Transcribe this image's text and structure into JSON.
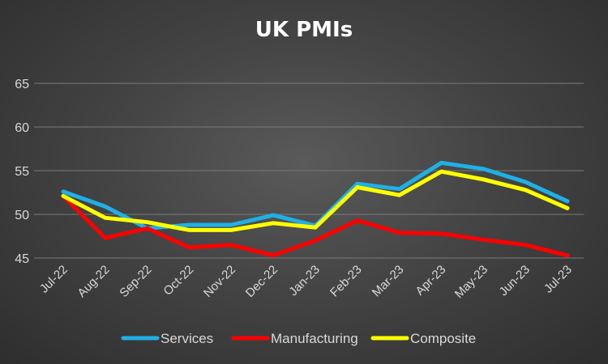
{
  "chart_data": {
    "type": "line",
    "title": "UK PMIs",
    "categories": [
      "Jul-22",
      "Aug-22",
      "Sep-22",
      "Oct-22",
      "Nov-22",
      "Dec-22",
      "Jan-23",
      "Feb-23",
      "Mar-23",
      "Apr-23",
      "May-23",
      "Jun-23",
      "Jul-23"
    ],
    "yticks": [
      "45",
      "50",
      "55",
      "60",
      "65"
    ],
    "ylim": [
      45,
      65
    ],
    "grid": true,
    "legend_position": "bottom",
    "series": [
      {
        "name": "Services",
        "color": "#1fb0e6",
        "values": [
          52.6,
          50.9,
          48.4,
          48.8,
          48.8,
          49.9,
          48.7,
          53.5,
          52.9,
          55.9,
          55.2,
          53.7,
          51.5
        ]
      },
      {
        "name": "Manufacturing",
        "color": "#ff0000",
        "values": [
          52.1,
          47.3,
          48.4,
          46.2,
          46.5,
          45.3,
          47.0,
          49.3,
          47.9,
          47.8,
          47.1,
          46.5,
          45.3
        ]
      },
      {
        "name": "Composite",
        "color": "#ffff00",
        "values": [
          52.1,
          49.6,
          49.1,
          48.2,
          48.2,
          49.0,
          48.5,
          53.1,
          52.2,
          54.9,
          54.0,
          52.8,
          50.7
        ]
      }
    ]
  }
}
